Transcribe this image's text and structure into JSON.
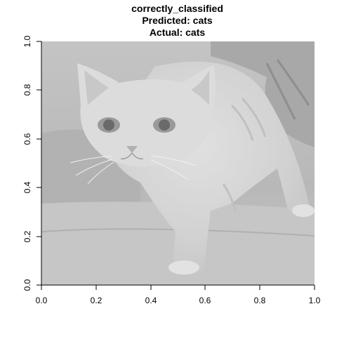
{
  "title": {
    "line1": "correctly_classified",
    "line2": "Predicted: cats",
    "line3": "Actual: cats"
  },
  "image_subject": "grayscale photo of a tabby kitten on a couch",
  "axes": {
    "x_ticks": [
      "0.0",
      "0.2",
      "0.4",
      "0.6",
      "0.8",
      "1.0"
    ],
    "y_ticks": [
      "0.0",
      "0.2",
      "0.4",
      "0.6",
      "0.8",
      "1.0"
    ],
    "xlim": [
      0,
      1
    ],
    "ylim": [
      0,
      1
    ]
  },
  "colors": {
    "background": "#ffffff",
    "image_light": "#d6d6d6",
    "image_mid": "#bcbcbc",
    "image_dark": "#9a9a9a"
  }
}
